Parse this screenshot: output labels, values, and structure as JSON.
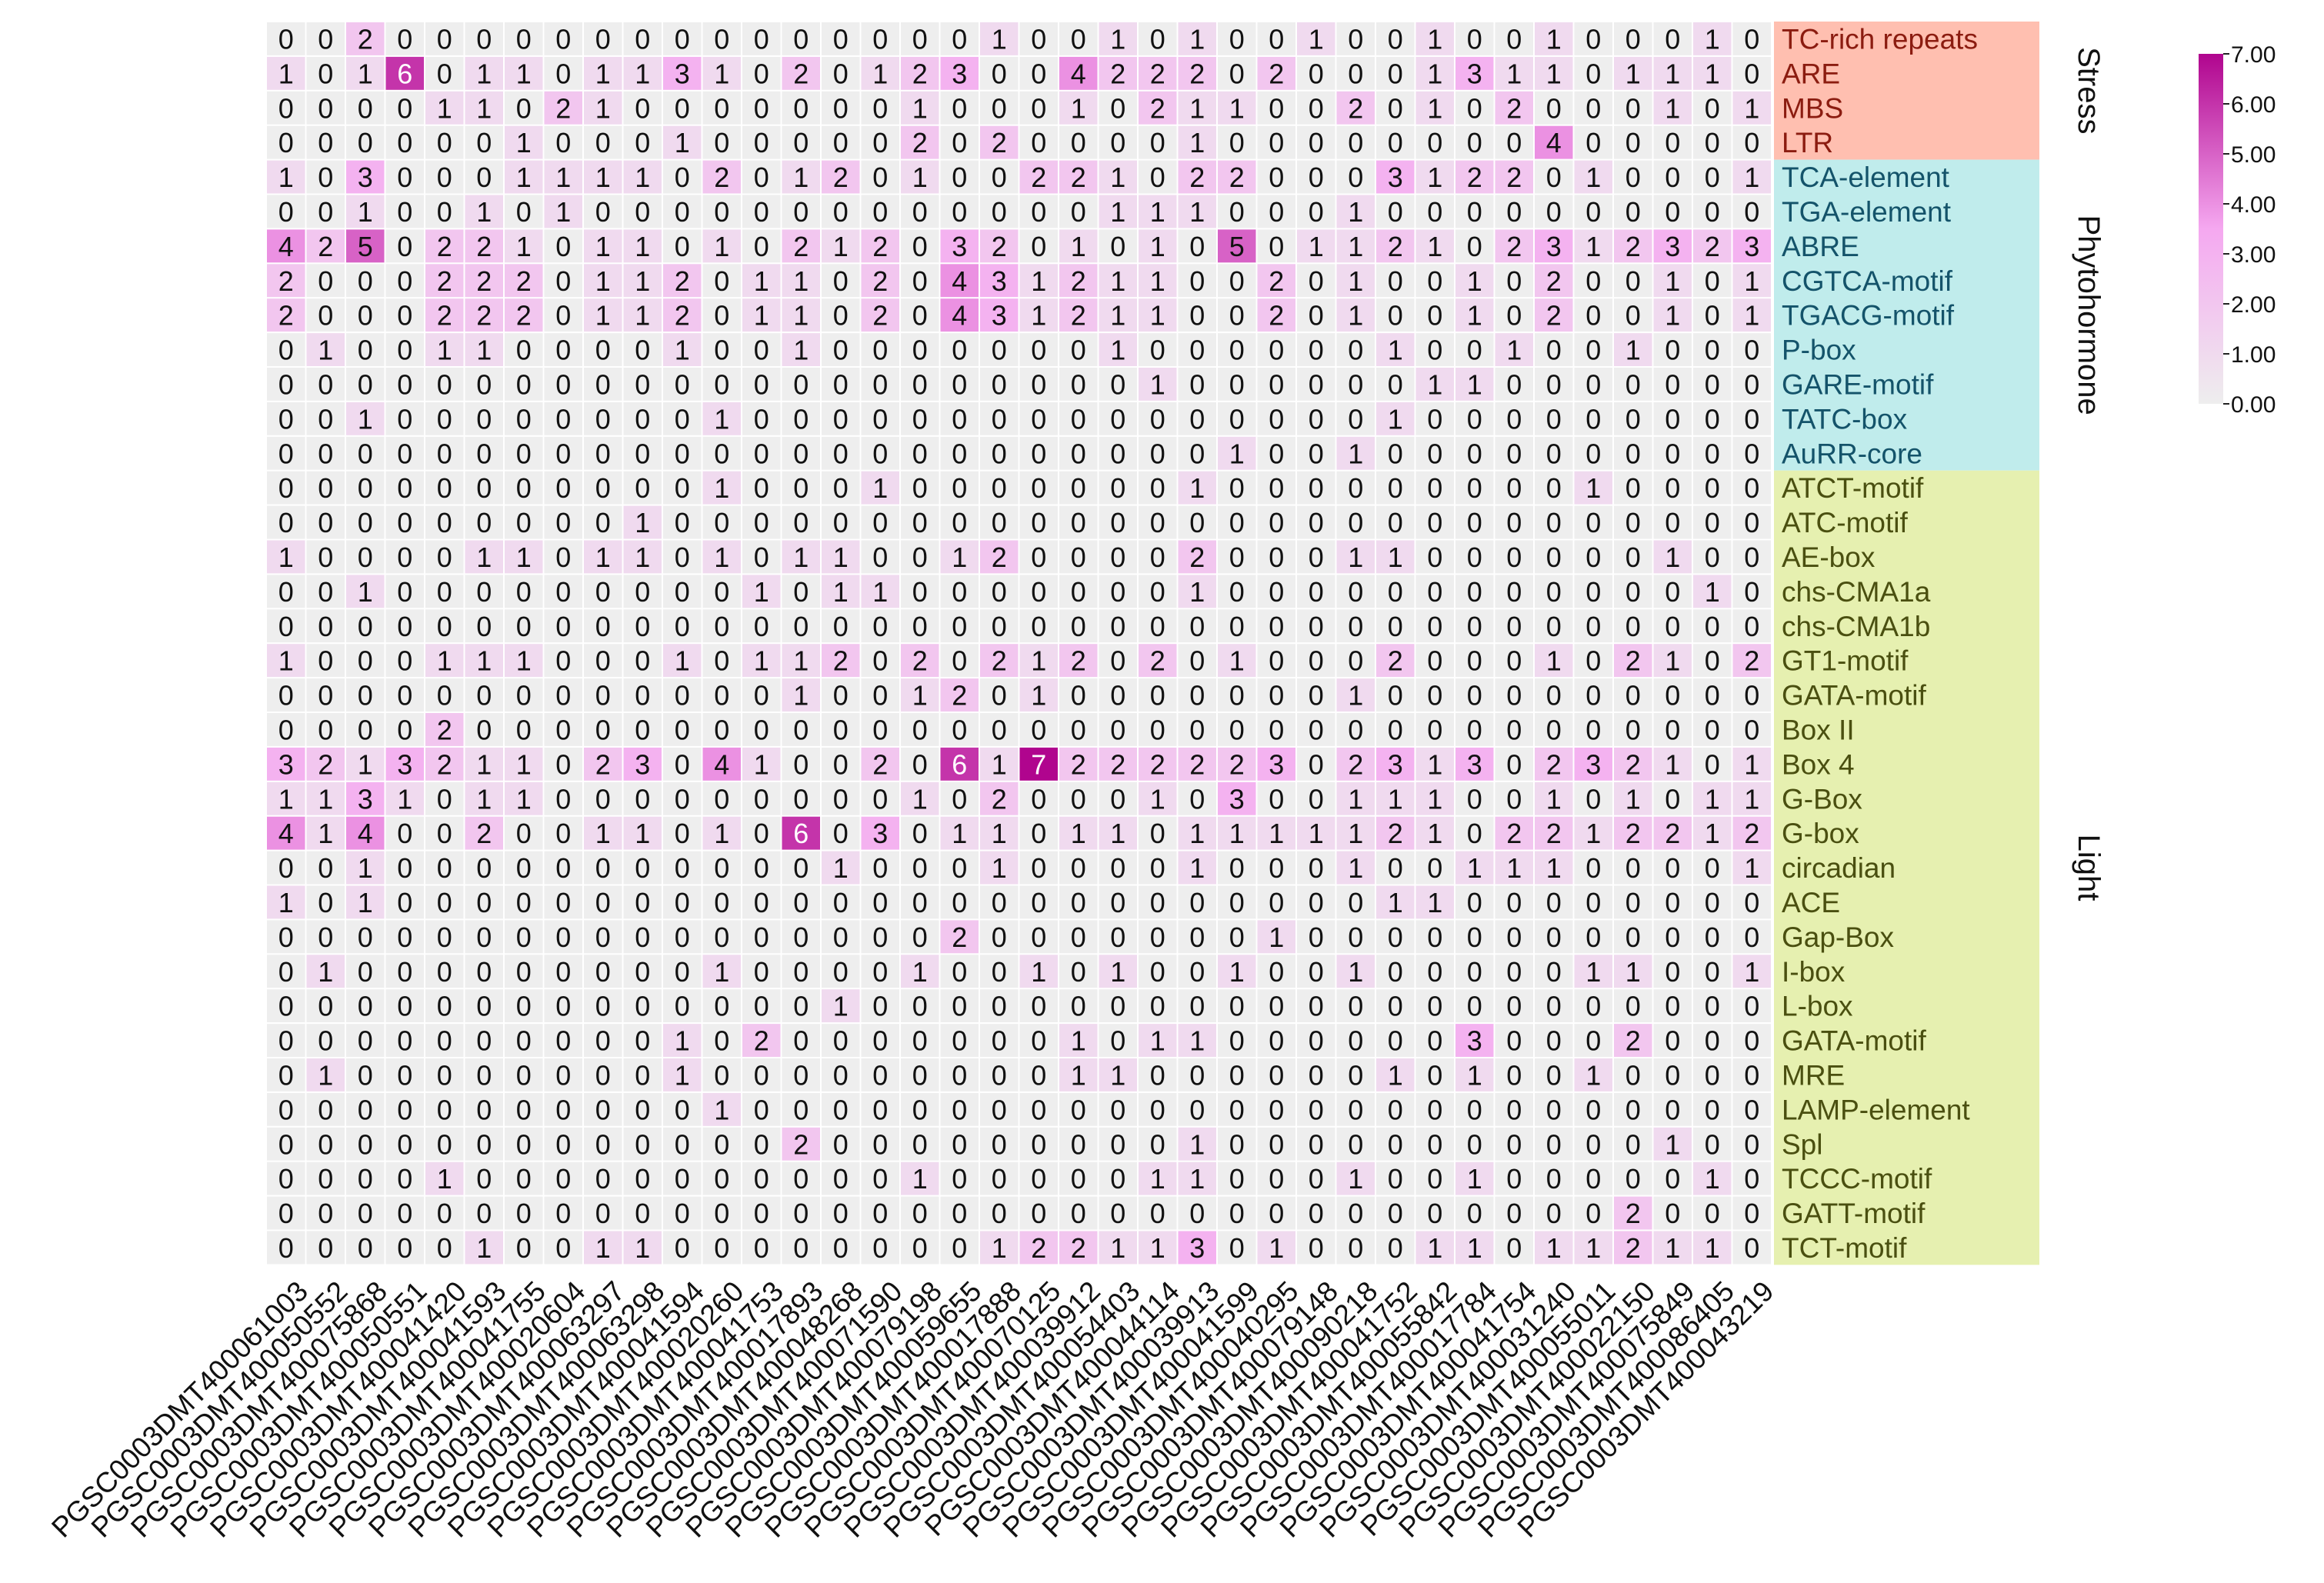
{
  "chart_data": {
    "type": "heatmap",
    "title": "",
    "x_labels": [
      "PGSC0003DMT400061003",
      "PGSC0003DMT400050552",
      "PGSC0003DMT400075868",
      "PGSC0003DMT400050551",
      "PGSC0003DMT400041420",
      "PGSC0003DMT400041593",
      "PGSC0003DMT400041755",
      "PGSC0003DMT400020604",
      "PGSC0003DMT400063297",
      "PGSC0003DMT400063298",
      "PGSC0003DMT400041594",
      "PGSC0003DMT400020260",
      "PGSC0003DMT400041753",
      "PGSC0003DMT400017893",
      "PGSC0003DMT400048268",
      "PGSC0003DMT400071590",
      "PGSC0003DMT400079198",
      "PGSC0003DMT400059655",
      "PGSC0003DMT400017888",
      "PGSC0003DMT400070125",
      "PGSC0003DMT400039912",
      "PGSC0003DMT400054403",
      "PGSC0003DMT400044114",
      "PGSC0003DMT400039913",
      "PGSC0003DMT400041599",
      "PGSC0003DMT400040295",
      "PGSC0003DMT400079148",
      "PGSC0003DMT400090218",
      "PGSC0003DMT400041752",
      "PGSC0003DMT400055842",
      "PGSC0003DMT400017784",
      "PGSC0003DMT400041754",
      "PGSC0003DMT400031240",
      "PGSC0003DMT400055011",
      "PGSC0003DMT400022150",
      "PGSC0003DMT400075849",
      "PGSC0003DMT400086405",
      "PGSC0003DMT400043219"
    ],
    "y_labels": [
      "TC-rich repeats",
      "ARE",
      "MBS",
      "LTR",
      "TCA-element",
      "TGA-element",
      "ABRE",
      "CGTCA-motif",
      "TGACG-motif",
      "P-box",
      "GARE-motif",
      "TATC-box",
      "AuRR-core",
      "ATCT-motif",
      "ATC-motif",
      "AE-box",
      "chs-CMA1a",
      "chs-CMA1b",
      "GT1-motif",
      "GATA-motif",
      "Box II",
      "Box 4",
      "G-Box",
      "G-box",
      "circadian",
      "ACE",
      "Gap-Box",
      "I-box",
      "L-box",
      "GATA-motif",
      "MRE",
      "LAMP-element",
      "Spl",
      "TCCC-motif",
      "GATT-motif",
      "TCT-motif"
    ],
    "values": [
      [
        0,
        0,
        2,
        0,
        0,
        0,
        0,
        0,
        0,
        0,
        0,
        0,
        0,
        0,
        0,
        0,
        0,
        0,
        1,
        0,
        0,
        1,
        0,
        1,
        0,
        0,
        1,
        0,
        0,
        1,
        0,
        0,
        1,
        0,
        0,
        0,
        1,
        0
      ],
      [
        1,
        0,
        1,
        6,
        0,
        1,
        1,
        0,
        1,
        1,
        3,
        1,
        0,
        2,
        0,
        1,
        2,
        3,
        0,
        0,
        4,
        2,
        2,
        2,
        0,
        2,
        0,
        0,
        0,
        1,
        3,
        1,
        1,
        0,
        1,
        1,
        1,
        0
      ],
      [
        0,
        0,
        0,
        0,
        1,
        1,
        0,
        2,
        1,
        0,
        0,
        0,
        0,
        0,
        0,
        0,
        1,
        0,
        0,
        0,
        1,
        0,
        2,
        1,
        1,
        0,
        0,
        2,
        0,
        1,
        0,
        2,
        0,
        0,
        0,
        1,
        0,
        1
      ],
      [
        0,
        0,
        0,
        0,
        0,
        0,
        1,
        0,
        0,
        0,
        1,
        0,
        0,
        0,
        0,
        0,
        2,
        0,
        2,
        0,
        0,
        0,
        0,
        1,
        0,
        0,
        0,
        0,
        0,
        0,
        0,
        0,
        4,
        0,
        0,
        0,
        0,
        0
      ],
      [
        1,
        0,
        3,
        0,
        0,
        0,
        1,
        1,
        1,
        1,
        0,
        2,
        0,
        1,
        2,
        0,
        1,
        0,
        0,
        2,
        2,
        1,
        0,
        2,
        2,
        0,
        0,
        0,
        3,
        1,
        2,
        2,
        0,
        1,
        0,
        0,
        0,
        1
      ],
      [
        0,
        0,
        1,
        0,
        0,
        1,
        0,
        1,
        0,
        0,
        0,
        0,
        0,
        0,
        0,
        0,
        0,
        0,
        0,
        0,
        0,
        1,
        1,
        1,
        0,
        0,
        0,
        1,
        0,
        0,
        0,
        0,
        0,
        0,
        0,
        0,
        0,
        0
      ],
      [
        4,
        2,
        5,
        0,
        2,
        2,
        1,
        0,
        1,
        1,
        0,
        1,
        0,
        2,
        1,
        2,
        0,
        3,
        2,
        0,
        1,
        0,
        1,
        0,
        5,
        0,
        1,
        1,
        2,
        1,
        0,
        2,
        3,
        1,
        2,
        3,
        2,
        3
      ],
      [
        2,
        0,
        0,
        0,
        2,
        2,
        2,
        0,
        1,
        1,
        2,
        0,
        1,
        1,
        0,
        2,
        0,
        4,
        3,
        1,
        2,
        1,
        1,
        0,
        0,
        2,
        0,
        1,
        0,
        0,
        1,
        0,
        2,
        0,
        0,
        1,
        0,
        1
      ],
      [
        2,
        0,
        0,
        0,
        2,
        2,
        2,
        0,
        1,
        1,
        2,
        0,
        1,
        1,
        0,
        2,
        0,
        4,
        3,
        1,
        2,
        1,
        1,
        0,
        0,
        2,
        0,
        1,
        0,
        0,
        1,
        0,
        2,
        0,
        0,
        1,
        0,
        1
      ],
      [
        0,
        1,
        0,
        0,
        1,
        1,
        0,
        0,
        0,
        0,
        1,
        0,
        0,
        1,
        0,
        0,
        0,
        0,
        0,
        0,
        0,
        1,
        0,
        0,
        0,
        0,
        0,
        0,
        1,
        0,
        0,
        1,
        0,
        0,
        1,
        0,
        0,
        0
      ],
      [
        0,
        0,
        0,
        0,
        0,
        0,
        0,
        0,
        0,
        0,
        0,
        0,
        0,
        0,
        0,
        0,
        0,
        0,
        0,
        0,
        0,
        0,
        1,
        0,
        0,
        0,
        0,
        0,
        0,
        1,
        1,
        0,
        0,
        0,
        0,
        0,
        0,
        0
      ],
      [
        0,
        0,
        1,
        0,
        0,
        0,
        0,
        0,
        0,
        0,
        0,
        1,
        0,
        0,
        0,
        0,
        0,
        0,
        0,
        0,
        0,
        0,
        0,
        0,
        0,
        0,
        0,
        0,
        1,
        0,
        0,
        0,
        0,
        0,
        0,
        0,
        0,
        0
      ],
      [
        0,
        0,
        0,
        0,
        0,
        0,
        0,
        0,
        0,
        0,
        0,
        0,
        0,
        0,
        0,
        0,
        0,
        0,
        0,
        0,
        0,
        0,
        0,
        0,
        1,
        0,
        0,
        1,
        0,
        0,
        0,
        0,
        0,
        0,
        0,
        0,
        0,
        0
      ],
      [
        0,
        0,
        0,
        0,
        0,
        0,
        0,
        0,
        0,
        0,
        0,
        1,
        0,
        0,
        0,
        1,
        0,
        0,
        0,
        0,
        0,
        0,
        0,
        1,
        0,
        0,
        0,
        0,
        0,
        0,
        0,
        0,
        0,
        1,
        0,
        0,
        0,
        0
      ],
      [
        0,
        0,
        0,
        0,
        0,
        0,
        0,
        0,
        0,
        1,
        0,
        0,
        0,
        0,
        0,
        0,
        0,
        0,
        0,
        0,
        0,
        0,
        0,
        0,
        0,
        0,
        0,
        0,
        0,
        0,
        0,
        0,
        0,
        0,
        0,
        0,
        0,
        0
      ],
      [
        1,
        0,
        0,
        0,
        0,
        1,
        1,
        0,
        1,
        1,
        0,
        1,
        0,
        1,
        1,
        0,
        0,
        1,
        2,
        0,
        0,
        0,
        0,
        2,
        0,
        0,
        0,
        1,
        1,
        0,
        0,
        0,
        0,
        0,
        0,
        1,
        0,
        0
      ],
      [
        0,
        0,
        1,
        0,
        0,
        0,
        0,
        0,
        0,
        0,
        0,
        0,
        1,
        0,
        1,
        1,
        0,
        0,
        0,
        0,
        0,
        0,
        0,
        1,
        0,
        0,
        0,
        0,
        0,
        0,
        0,
        0,
        0,
        0,
        0,
        0,
        1,
        0
      ],
      [
        0,
        0,
        0,
        0,
        0,
        0,
        0,
        0,
        0,
        0,
        0,
        0,
        0,
        0,
        0,
        0,
        0,
        0,
        0,
        0,
        0,
        0,
        0,
        0,
        0,
        0,
        0,
        0,
        0,
        0,
        0,
        0,
        0,
        0,
        0,
        0,
        0,
        0
      ],
      [
        1,
        0,
        0,
        0,
        1,
        1,
        1,
        0,
        0,
        0,
        1,
        0,
        1,
        1,
        2,
        0,
        2,
        0,
        2,
        1,
        2,
        0,
        2,
        0,
        1,
        0,
        0,
        0,
        2,
        0,
        0,
        0,
        1,
        0,
        2,
        1,
        0,
        2
      ],
      [
        0,
        0,
        0,
        0,
        0,
        0,
        0,
        0,
        0,
        0,
        0,
        0,
        0,
        1,
        0,
        0,
        1,
        2,
        0,
        1,
        0,
        0,
        0,
        0,
        0,
        0,
        0,
        1,
        0,
        0,
        0,
        0,
        0,
        0,
        0,
        0,
        0,
        0
      ],
      [
        0,
        0,
        0,
        0,
        2,
        0,
        0,
        0,
        0,
        0,
        0,
        0,
        0,
        0,
        0,
        0,
        0,
        0,
        0,
        0,
        0,
        0,
        0,
        0,
        0,
        0,
        0,
        0,
        0,
        0,
        0,
        0,
        0,
        0,
        0,
        0,
        0,
        0
      ],
      [
        3,
        2,
        1,
        3,
        2,
        1,
        1,
        0,
        2,
        3,
        0,
        4,
        1,
        0,
        0,
        2,
        0,
        6,
        1,
        7,
        2,
        2,
        2,
        2,
        2,
        3,
        0,
        2,
        3,
        1,
        3,
        0,
        2,
        3,
        2,
        1,
        0,
        1
      ],
      [
        1,
        1,
        3,
        1,
        0,
        1,
        1,
        0,
        0,
        0,
        0,
        0,
        0,
        0,
        0,
        0,
        1,
        0,
        2,
        0,
        0,
        0,
        1,
        0,
        3,
        0,
        0,
        1,
        1,
        1,
        0,
        0,
        1,
        0,
        1,
        0,
        1,
        1
      ],
      [
        4,
        1,
        4,
        0,
        0,
        2,
        0,
        0,
        1,
        1,
        0,
        1,
        0,
        6,
        0,
        3,
        0,
        1,
        1,
        0,
        1,
        1,
        0,
        1,
        1,
        1,
        1,
        1,
        2,
        1,
        0,
        2,
        2,
        1,
        2,
        2,
        1,
        2
      ],
      [
        0,
        0,
        1,
        0,
        0,
        0,
        0,
        0,
        0,
        0,
        0,
        0,
        0,
        0,
        1,
        0,
        0,
        0,
        1,
        0,
        0,
        0,
        0,
        1,
        0,
        0,
        0,
        1,
        0,
        0,
        1,
        1,
        1,
        0,
        0,
        0,
        0,
        1
      ],
      [
        1,
        0,
        1,
        0,
        0,
        0,
        0,
        0,
        0,
        0,
        0,
        0,
        0,
        0,
        0,
        0,
        0,
        0,
        0,
        0,
        0,
        0,
        0,
        0,
        0,
        0,
        0,
        0,
        1,
        1,
        0,
        0,
        0,
        0,
        0,
        0,
        0,
        0
      ],
      [
        0,
        0,
        0,
        0,
        0,
        0,
        0,
        0,
        0,
        0,
        0,
        0,
        0,
        0,
        0,
        0,
        0,
        2,
        0,
        0,
        0,
        0,
        0,
        0,
        0,
        1,
        0,
        0,
        0,
        0,
        0,
        0,
        0,
        0,
        0,
        0,
        0,
        0
      ],
      [
        0,
        1,
        0,
        0,
        0,
        0,
        0,
        0,
        0,
        0,
        0,
        1,
        0,
        0,
        0,
        0,
        1,
        0,
        0,
        1,
        0,
        1,
        0,
        0,
        1,
        0,
        0,
        1,
        0,
        0,
        0,
        0,
        0,
        1,
        1,
        0,
        0,
        1
      ],
      [
        0,
        0,
        0,
        0,
        0,
        0,
        0,
        0,
        0,
        0,
        0,
        0,
        0,
        0,
        1,
        0,
        0,
        0,
        0,
        0,
        0,
        0,
        0,
        0,
        0,
        0,
        0,
        0,
        0,
        0,
        0,
        0,
        0,
        0,
        0,
        0,
        0,
        0
      ],
      [
        0,
        0,
        0,
        0,
        0,
        0,
        0,
        0,
        0,
        0,
        1,
        0,
        2,
        0,
        0,
        0,
        0,
        0,
        0,
        0,
        1,
        0,
        1,
        1,
        0,
        0,
        0,
        0,
        0,
        0,
        3,
        0,
        0,
        0,
        2,
        0,
        0,
        0
      ],
      [
        0,
        1,
        0,
        0,
        0,
        0,
        0,
        0,
        0,
        0,
        1,
        0,
        0,
        0,
        0,
        0,
        0,
        0,
        0,
        0,
        1,
        1,
        0,
        0,
        0,
        0,
        0,
        0,
        1,
        0,
        1,
        0,
        0,
        1,
        0,
        0,
        0,
        0
      ],
      [
        0,
        0,
        0,
        0,
        0,
        0,
        0,
        0,
        0,
        0,
        0,
        1,
        0,
        0,
        0,
        0,
        0,
        0,
        0,
        0,
        0,
        0,
        0,
        0,
        0,
        0,
        0,
        0,
        0,
        0,
        0,
        0,
        0,
        0,
        0,
        0,
        0,
        0
      ],
      [
        0,
        0,
        0,
        0,
        0,
        0,
        0,
        0,
        0,
        0,
        0,
        0,
        0,
        2,
        0,
        0,
        0,
        0,
        0,
        0,
        0,
        0,
        0,
        1,
        0,
        0,
        0,
        0,
        0,
        0,
        0,
        0,
        0,
        0,
        0,
        1,
        0,
        0
      ],
      [
        0,
        0,
        0,
        0,
        1,
        0,
        0,
        0,
        0,
        0,
        0,
        0,
        0,
        0,
        0,
        0,
        1,
        0,
        0,
        0,
        0,
        0,
        1,
        1,
        0,
        0,
        0,
        1,
        0,
        0,
        1,
        0,
        0,
        0,
        0,
        0,
        1,
        0
      ],
      [
        0,
        0,
        0,
        0,
        0,
        0,
        0,
        0,
        0,
        0,
        0,
        0,
        0,
        0,
        0,
        0,
        0,
        0,
        0,
        0,
        0,
        0,
        0,
        0,
        0,
        0,
        0,
        0,
        0,
        0,
        0,
        0,
        0,
        0,
        2,
        0,
        0,
        0
      ],
      [
        0,
        0,
        0,
        0,
        0,
        1,
        0,
        0,
        1,
        1,
        0,
        0,
        0,
        0,
        0,
        0,
        0,
        0,
        1,
        2,
        2,
        1,
        1,
        3,
        0,
        1,
        0,
        0,
        0,
        1,
        1,
        0,
        1,
        1,
        2,
        1,
        1,
        0
      ]
    ],
    "groups": [
      {
        "name": "Stress",
        "start": 0,
        "end": 3,
        "color": "#ffbfb0",
        "text_color": "#8b1c10"
      },
      {
        "name": "Phytohormone",
        "start": 4,
        "end": 12,
        "color": "#c0ecec",
        "text_color": "#14536a"
      },
      {
        "name": "Light",
        "start": 13,
        "end": 35,
        "color": "#e6f0b0",
        "text_color": "#4a4f10"
      }
    ],
    "colorbar": {
      "min": 0,
      "max": 7,
      "ticks": [
        "0.00",
        "1.00",
        "2.00",
        "3.00",
        "4.00",
        "5.00",
        "6.00",
        "7.00"
      ],
      "low_color": "#eeeeee",
      "high_color": "#b0058e"
    },
    "legend_position": "top-right",
    "grid": false
  }
}
